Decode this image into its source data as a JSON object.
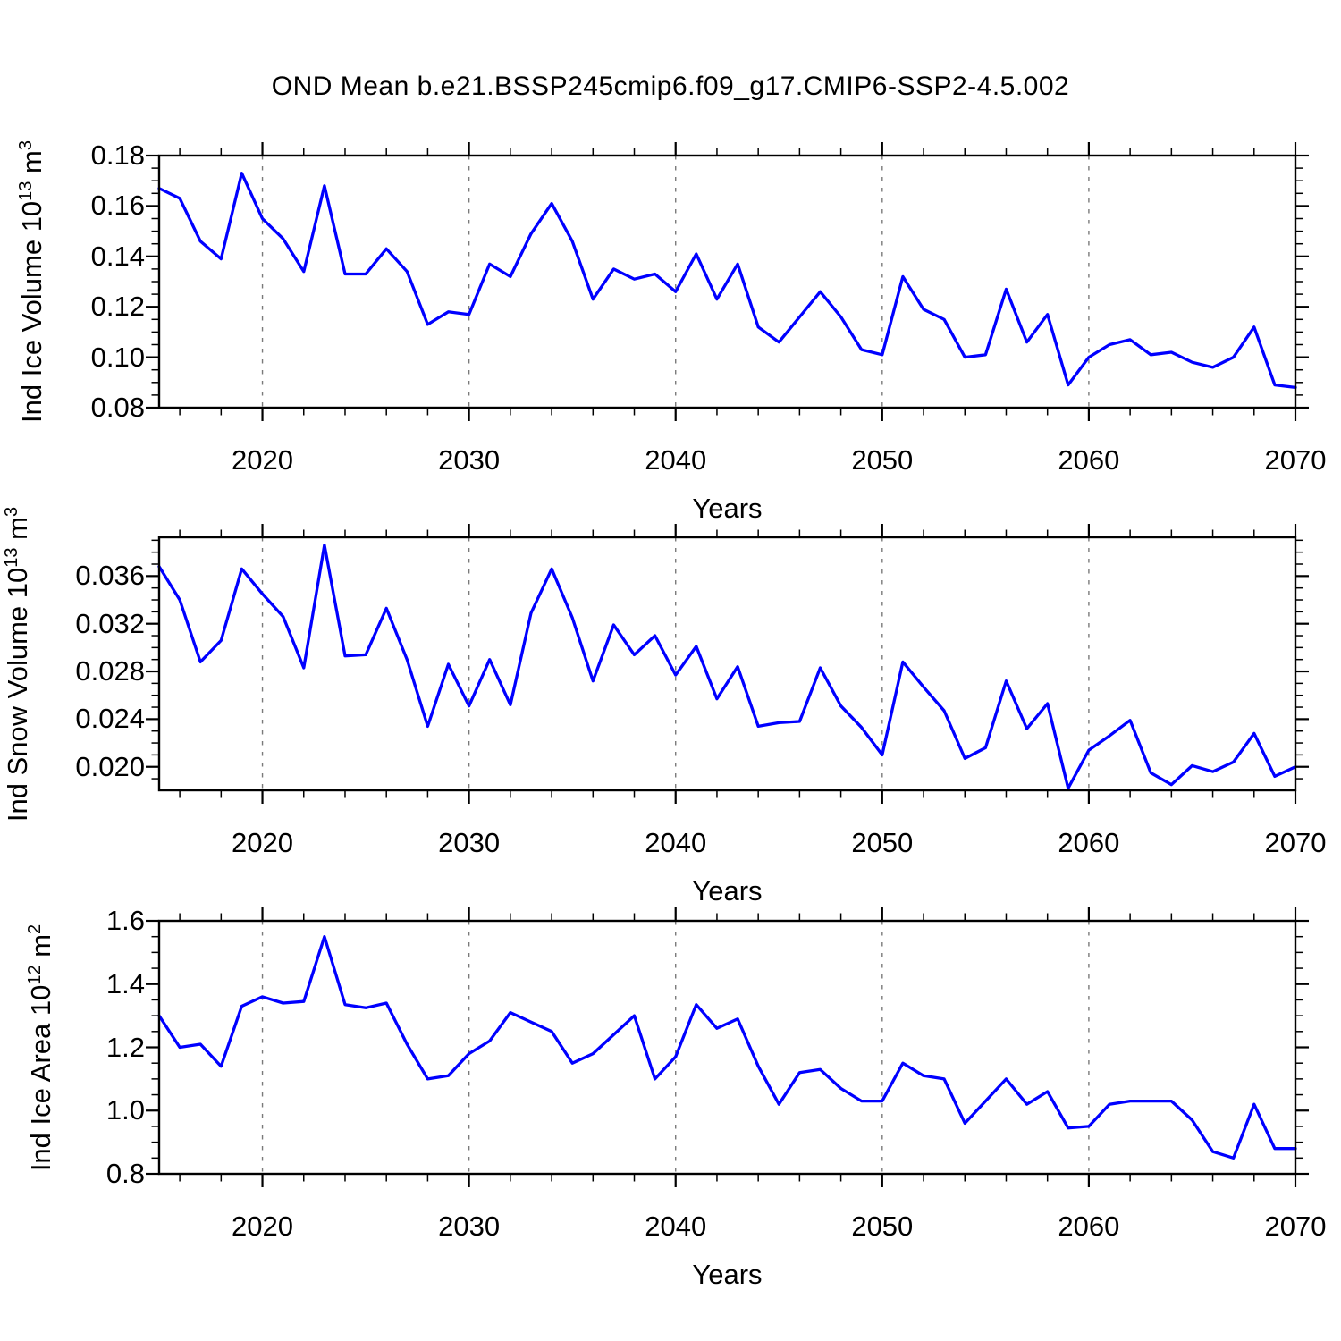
{
  "title": "OND Mean b.e21.BSSP245cmip6.f09_g17.CMIP6-SSP2-4.5.002",
  "colors": {
    "line": "#0000ff",
    "grid": "#7a7a7a",
    "axis": "#000000",
    "background": "#ffffff"
  },
  "chart_data": [
    {
      "type": "line",
      "name": "ind_ice_volume",
      "ylabel": {
        "prefix": "Ind Ice Volume 10",
        "exp": "13",
        "unit": " m",
        "unit_exp": "3"
      },
      "xlabel": "Years",
      "x": [
        2015,
        2016,
        2017,
        2018,
        2019,
        2020,
        2021,
        2022,
        2023,
        2024,
        2025,
        2026,
        2027,
        2028,
        2029,
        2030,
        2031,
        2032,
        2033,
        2034,
        2035,
        2036,
        2037,
        2038,
        2039,
        2040,
        2041,
        2042,
        2043,
        2044,
        2045,
        2046,
        2047,
        2048,
        2049,
        2050,
        2051,
        2052,
        2053,
        2054,
        2055,
        2056,
        2057,
        2058,
        2059,
        2060,
        2061,
        2062,
        2063,
        2064,
        2065,
        2066,
        2067,
        2068,
        2069,
        2070
      ],
      "values": [
        0.167,
        0.163,
        0.146,
        0.139,
        0.173,
        0.155,
        0.147,
        0.134,
        0.168,
        0.133,
        0.133,
        0.143,
        0.134,
        0.113,
        0.118,
        0.117,
        0.137,
        0.132,
        0.149,
        0.161,
        0.146,
        0.123,
        0.135,
        0.131,
        0.133,
        0.126,
        0.141,
        0.123,
        0.137,
        0.112,
        0.106,
        0.116,
        0.126,
        0.116,
        0.103,
        0.101,
        0.132,
        0.119,
        0.115,
        0.1,
        0.101,
        0.127,
        0.106,
        0.117,
        0.089,
        0.1,
        0.105,
        0.107,
        0.101,
        0.102,
        0.098,
        0.096,
        0.1,
        0.112,
        0.089,
        0.088
      ],
      "xlim": [
        2015,
        2070
      ],
      "ylim": [
        0.08,
        0.18
      ],
      "ytick_values": [
        0.18,
        0.16,
        0.14,
        0.12,
        0.1,
        0.08
      ],
      "ytick_labels": [
        "0.18",
        "0.16",
        "0.14",
        "0.12",
        "0.10",
        "0.08"
      ],
      "y_minor_step": 0.005,
      "xtick_values": [
        2020,
        2030,
        2040,
        2050,
        2060,
        2070
      ],
      "xtick_labels": [
        "2020",
        "2030",
        "2040",
        "2050",
        "2060",
        "2070"
      ],
      "x_minor_step": 2,
      "grid_x": [
        2020,
        2030,
        2040,
        2050,
        2060
      ],
      "grid": "vertical-dashed",
      "legend": "none"
    },
    {
      "type": "line",
      "name": "ind_snow_volume",
      "ylabel": {
        "prefix": "Ind Snow Volume 10",
        "exp": "13",
        "unit": " m",
        "unit_exp": "3"
      },
      "xlabel": "Years",
      "x": [
        2015,
        2016,
        2017,
        2018,
        2019,
        2020,
        2021,
        2022,
        2023,
        2024,
        2025,
        2026,
        2027,
        2028,
        2029,
        2030,
        2031,
        2032,
        2033,
        2034,
        2035,
        2036,
        2037,
        2038,
        2039,
        2040,
        2041,
        2042,
        2043,
        2044,
        2045,
        2046,
        2047,
        2048,
        2049,
        2050,
        2051,
        2052,
        2053,
        2054,
        2055,
        2056,
        2057,
        2058,
        2059,
        2060,
        2061,
        2062,
        2063,
        2064,
        2065,
        2066,
        2067,
        2068,
        2069,
        2070
      ],
      "values": [
        0.0368,
        0.034,
        0.0288,
        0.0306,
        0.0366,
        0.0345,
        0.0326,
        0.0283,
        0.0386,
        0.0293,
        0.0294,
        0.0333,
        0.029,
        0.0234,
        0.0286,
        0.0251,
        0.029,
        0.0252,
        0.0329,
        0.0366,
        0.0325,
        0.0272,
        0.0319,
        0.0294,
        0.031,
        0.0277,
        0.0301,
        0.0257,
        0.0284,
        0.0234,
        0.0237,
        0.0238,
        0.0283,
        0.0251,
        0.0233,
        0.021,
        0.0288,
        0.0267,
        0.0247,
        0.0207,
        0.0216,
        0.0272,
        0.0232,
        0.0253,
        0.0182,
        0.0214,
        0.0226,
        0.0239,
        0.0195,
        0.0185,
        0.0201,
        0.0196,
        0.0204,
        0.0228,
        0.0192,
        0.02
      ],
      "xlim": [
        2015,
        2070
      ],
      "ylim": [
        0.01803,
        0.03925
      ],
      "ytick_values": [
        0.036,
        0.032,
        0.028,
        0.024,
        0.02
      ],
      "ytick_labels": [
        "0.036",
        "0.032",
        "0.028",
        "0.024",
        "0.020"
      ],
      "y_minor_step": 0.001,
      "xtick_values": [
        2020,
        2030,
        2040,
        2050,
        2060,
        2070
      ],
      "xtick_labels": [
        "2020",
        "2030",
        "2040",
        "2050",
        "2060",
        "2070"
      ],
      "x_minor_step": 2,
      "grid_x": [
        2020,
        2030,
        2040,
        2050,
        2060
      ],
      "grid": "vertical-dashed",
      "legend": "none"
    },
    {
      "type": "line",
      "name": "ind_ice_area",
      "ylabel": {
        "prefix": "Ind Ice Area 10",
        "exp": "12",
        "unit": " m",
        "unit_exp": "2"
      },
      "xlabel": "Years",
      "x": [
        2015,
        2016,
        2017,
        2018,
        2019,
        2020,
        2021,
        2022,
        2023,
        2024,
        2025,
        2026,
        2027,
        2028,
        2029,
        2030,
        2031,
        2032,
        2033,
        2034,
        2035,
        2036,
        2037,
        2038,
        2039,
        2040,
        2041,
        2042,
        2043,
        2044,
        2045,
        2046,
        2047,
        2048,
        2049,
        2050,
        2051,
        2052,
        2053,
        2054,
        2055,
        2056,
        2057,
        2058,
        2059,
        2060,
        2061,
        2062,
        2063,
        2064,
        2065,
        2066,
        2067,
        2068,
        2069,
        2070
      ],
      "values": [
        1.3,
        1.2,
        1.21,
        1.14,
        1.33,
        1.36,
        1.34,
        1.345,
        1.55,
        1.335,
        1.325,
        1.34,
        1.21,
        1.1,
        1.11,
        1.18,
        1.22,
        1.31,
        1.28,
        1.25,
        1.15,
        1.18,
        1.24,
        1.3,
        1.1,
        1.17,
        1.335,
        1.26,
        1.29,
        1.14,
        1.02,
        1.12,
        1.13,
        1.07,
        1.03,
        1.03,
        1.15,
        1.11,
        1.1,
        0.96,
        1.03,
        1.1,
        1.02,
        1.06,
        0.945,
        0.95,
        1.02,
        1.03,
        1.03,
        1.03,
        0.97,
        0.87,
        0.85,
        1.02,
        0.88,
        0.88
      ],
      "xlim": [
        2015,
        2070
      ],
      "ylim": [
        0.8,
        1.6
      ],
      "ytick_values": [
        1.6,
        1.4,
        1.2,
        1.0,
        0.8
      ],
      "ytick_labels": [
        "1.6",
        "1.4",
        "1.2",
        "1.0",
        "0.8"
      ],
      "y_minor_step": 0.05,
      "xtick_values": [
        2020,
        2030,
        2040,
        2050,
        2060,
        2070
      ],
      "xtick_labels": [
        "2020",
        "2030",
        "2040",
        "2050",
        "2060",
        "2070"
      ],
      "x_minor_step": 2,
      "grid_x": [
        2020,
        2030,
        2040,
        2050,
        2060
      ],
      "grid": "vertical-dashed",
      "legend": "none"
    }
  ]
}
